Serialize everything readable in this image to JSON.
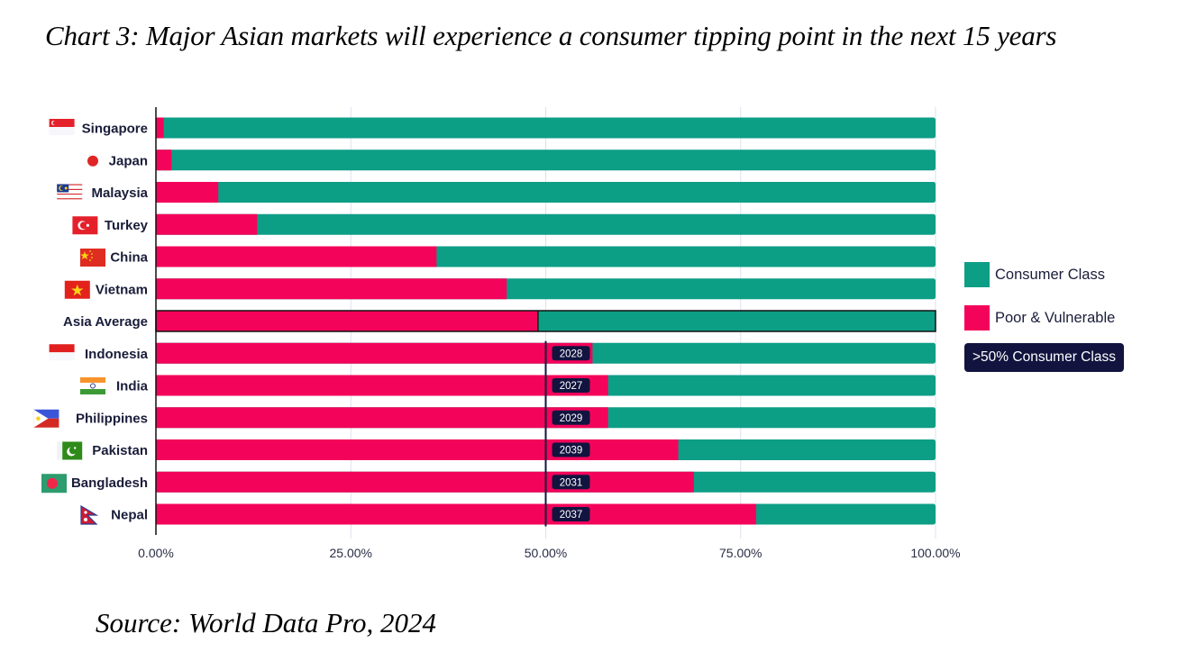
{
  "title": "Chart 3: Major Asian markets will experience a consumer tipping point in the next 15 years",
  "source": "Source: World Data Pro, 2024",
  "colors": {
    "consumer": "#0d9e86",
    "poor": "#f4035a",
    "badge": "#12143f",
    "axis": "#111111",
    "grid": "#dde0ef",
    "marker_line": "#12143f"
  },
  "legend": {
    "items": [
      {
        "label": "Consumer Class",
        "color": "#0d9e86"
      },
      {
        "label": "Poor & Vulnerable",
        "color": "#f4035a"
      }
    ],
    "badge_label": ">50% Consumer Class"
  },
  "chart_data": {
    "type": "bar",
    "orientation": "horizontal",
    "stacked": true,
    "title": "Chart 3: Major Asian markets will experience a consumer tipping point in the next 15 years",
    "xlabel": "",
    "ylabel": "",
    "xlim": [
      0,
      100
    ],
    "x_ticks": [
      "0.00%",
      "25.00%",
      "50.00%",
      "75.00%",
      "100.00%"
    ],
    "x_tick_values": [
      0,
      25,
      50,
      75,
      100
    ],
    "grid": true,
    "legend_position": "right",
    "reference_line": {
      "value": 50,
      "applies_from": "Indonesia"
    },
    "categories": [
      "Singapore",
      "Japan",
      "Malaysia",
      "Turkey",
      "China",
      "Vietnam",
      "Asia Average",
      "Indonesia",
      "India",
      "Philippines",
      "Pakistan",
      "Bangladesh",
      "Nepal"
    ],
    "flags": [
      "singapore-flag",
      "japan-flag",
      "malaysia-flag",
      "turkey-flag",
      "china-flag",
      "vietnam-flag",
      "",
      "indonesia-flag",
      "india-flag",
      "philippines-flag",
      "pakistan-flag",
      "bangladesh-flag",
      "nepal-flag"
    ],
    "series": [
      {
        "name": "Poor & Vulnerable",
        "values": [
          1,
          2,
          8,
          13,
          36,
          45,
          49,
          56,
          58,
          58,
          67,
          69,
          77
        ]
      },
      {
        "name": "Consumer Class",
        "values": [
          99,
          98,
          92,
          87,
          64,
          55,
          51,
          44,
          42,
          42,
          33,
          31,
          23
        ]
      }
    ],
    "tipping_year": [
      null,
      null,
      null,
      null,
      null,
      null,
      null,
      "2028",
      "2027",
      "2029",
      "2039",
      "2031",
      "2037"
    ],
    "highlighted_category": "Asia Average"
  }
}
